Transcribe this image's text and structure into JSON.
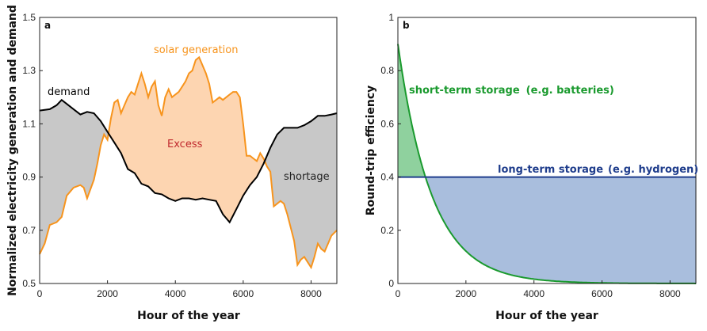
{
  "chart_data": [
    {
      "panel": "a",
      "type": "area",
      "xlabel": "Hour of the year",
      "ylabel": "Normalized electricity generation and demand",
      "xlim": [
        0,
        8760
      ],
      "ylim": [
        0.5,
        1.5
      ],
      "xticks": [
        "0",
        "2000",
        "4000",
        "6000",
        "8000"
      ],
      "yticks": [
        "0.5",
        "0.7",
        "0.9",
        "1.1",
        "1.3",
        "1.5"
      ],
      "grid": false,
      "annotations": {
        "demand": "demand",
        "solar": "solar generation",
        "excess": "Excess",
        "shortage": "shortage"
      },
      "colors": {
        "demand": "#000000",
        "solar": "#f7941d",
        "excess_fill": "#fdd5b1",
        "shortage_fill": "#c8c8c8",
        "excess_text": "#c0282d"
      },
      "series": [
        {
          "key": "demand",
          "x": [
            0,
            300,
            500,
            650,
            800,
            1000,
            1200,
            1400,
            1600,
            1800,
            2000,
            2200,
            2400,
            2600,
            2800,
            3000,
            3200,
            3400,
            3600,
            3800,
            4000,
            4200,
            4400,
            4600,
            4800,
            5000,
            5200,
            5400,
            5600,
            5800,
            6000,
            6200,
            6400,
            6600,
            6800,
            7000,
            7200,
            7400,
            7600,
            7800,
            8000,
            8200,
            8400,
            8600,
            8760
          ],
          "values": [
            1.15,
            1.155,
            1.17,
            1.19,
            1.175,
            1.155,
            1.135,
            1.145,
            1.14,
            1.11,
            1.07,
            1.03,
            0.99,
            0.93,
            0.915,
            0.875,
            0.865,
            0.84,
            0.835,
            0.82,
            0.81,
            0.82,
            0.82,
            0.815,
            0.82,
            0.815,
            0.81,
            0.76,
            0.73,
            0.78,
            0.83,
            0.87,
            0.9,
            0.95,
            1.01,
            1.06,
            1.085,
            1.085,
            1.085,
            1.095,
            1.11,
            1.13,
            1.13,
            1.135,
            1.14
          ]
        },
        {
          "key": "solar",
          "x": [
            0,
            150,
            300,
            500,
            650,
            800,
            1000,
            1200,
            1300,
            1400,
            1600,
            1700,
            1800,
            1900,
            2000,
            2100,
            2200,
            2300,
            2400,
            2500,
            2600,
            2700,
            2800,
            2900,
            3000,
            3100,
            3200,
            3300,
            3400,
            3500,
            3600,
            3700,
            3800,
            3900,
            4000,
            4100,
            4200,
            4300,
            4400,
            4500,
            4600,
            4700,
            4800,
            4900,
            5000,
            5100,
            5200,
            5300,
            5400,
            5500,
            5600,
            5700,
            5800,
            5900,
            6000,
            6100,
            6200,
            6300,
            6400,
            6500,
            6600,
            6700,
            6800,
            6900,
            7000,
            7100,
            7200,
            7300,
            7400,
            7500,
            7600,
            7700,
            7800,
            7900,
            8000,
            8100,
            8200,
            8300,
            8400,
            8500,
            8600,
            8760
          ],
          "values": [
            0.61,
            0.65,
            0.72,
            0.73,
            0.75,
            0.83,
            0.86,
            0.87,
            0.86,
            0.82,
            0.89,
            0.95,
            1.02,
            1.06,
            1.04,
            1.12,
            1.18,
            1.19,
            1.14,
            1.17,
            1.2,
            1.22,
            1.21,
            1.25,
            1.29,
            1.25,
            1.2,
            1.24,
            1.26,
            1.17,
            1.13,
            1.2,
            1.23,
            1.2,
            1.21,
            1.22,
            1.24,
            1.26,
            1.29,
            1.3,
            1.34,
            1.35,
            1.32,
            1.29,
            1.25,
            1.18,
            1.19,
            1.2,
            1.19,
            1.2,
            1.21,
            1.22,
            1.22,
            1.2,
            1.1,
            0.98,
            0.98,
            0.97,
            0.96,
            0.99,
            0.97,
            0.94,
            0.92,
            0.79,
            0.8,
            0.81,
            0.8,
            0.76,
            0.71,
            0.66,
            0.57,
            0.59,
            0.6,
            0.58,
            0.56,
            0.6,
            0.65,
            0.63,
            0.62,
            0.65,
            0.68,
            0.7
          ]
        }
      ]
    },
    {
      "panel": "b",
      "type": "area",
      "xlabel": "Hour of the year",
      "ylabel": "Round-trip efficiency",
      "xlim": [
        0,
        8760
      ],
      "ylim": [
        0,
        1
      ],
      "xticks": [
        "0",
        "2000",
        "4000",
        "6000",
        "8000"
      ],
      "yticks": [
        "0",
        "0.2",
        "0.4",
        "0.6",
        "0.8",
        "1"
      ],
      "grid": false,
      "annotations": {
        "short_term": "short-term storage",
        "short_term_example": "(e.g. batteries)",
        "long_term": "long-term storage",
        "long_term_example": "(e.g. hydrogen)"
      },
      "colors": {
        "short": "#1a9a2e",
        "short_fill": "#8fd19e",
        "long": "#1f3d8c",
        "long_fill": "#a9bedd"
      },
      "series": [
        {
          "key": "short_term",
          "initial_value": 0.9,
          "decay_constant_hours": 1000
        },
        {
          "key": "long_term",
          "value": 0.4
        }
      ]
    }
  ]
}
